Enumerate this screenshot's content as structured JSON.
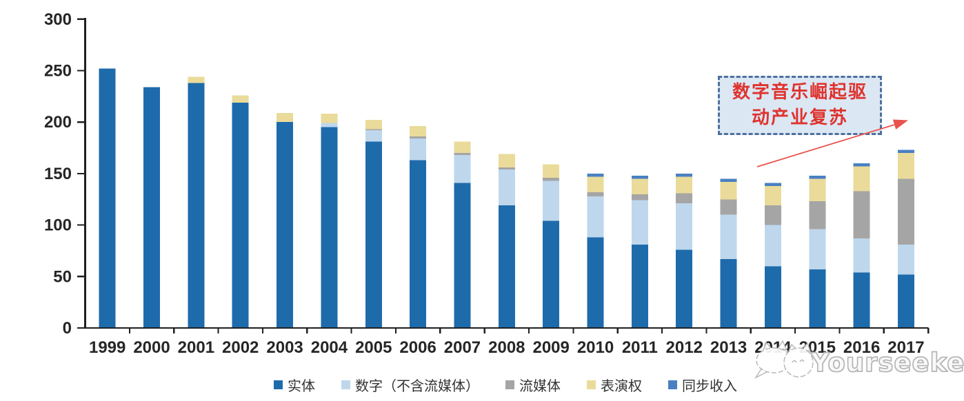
{
  "chart_data": {
    "type": "bar",
    "stacked": true,
    "title": "",
    "xlabel": "",
    "ylabel": "",
    "ylim": [
      0,
      300
    ],
    "yticks": [
      0,
      50,
      100,
      150,
      200,
      250,
      300
    ],
    "grid": false,
    "legend_position": "bottom",
    "categories": [
      "1999",
      "2000",
      "2001",
      "2002",
      "2003",
      "2004",
      "2005",
      "2006",
      "2007",
      "2008",
      "2009",
      "2010",
      "2011",
      "2012",
      "2013",
      "2014",
      "2015",
      "2016",
      "2017"
    ],
    "series": [
      {
        "name": "实体",
        "color": "#1e6bac",
        "values": [
          252,
          234,
          238,
          219,
          200,
          195,
          181,
          163,
          141,
          119,
          104,
          88,
          81,
          76,
          67,
          60,
          57,
          54,
          52
        ]
      },
      {
        "name": "数字（不含流媒体）",
        "color": "#bed7ec",
        "values": [
          0,
          0,
          0,
          0,
          0,
          4,
          11,
          21,
          27,
          35,
          39,
          40,
          43,
          45,
          43,
          40,
          39,
          33,
          29
        ]
      },
      {
        "name": "流媒体",
        "color": "#a5a5a5",
        "values": [
          0,
          0,
          0,
          0,
          0,
          0,
          1,
          2,
          2,
          2,
          3,
          4,
          6,
          10,
          15,
          19,
          27,
          46,
          64
        ]
      },
      {
        "name": "表演权",
        "color": "#eadb9a",
        "values": [
          0,
          0,
          6,
          7,
          9,
          9,
          9,
          10,
          11,
          13,
          13,
          15,
          15,
          16,
          17,
          19,
          22,
          24,
          25
        ]
      },
      {
        "name": "同步收入",
        "color": "#4a80c2",
        "values": [
          0,
          0,
          0,
          0,
          0,
          0,
          0,
          0,
          0,
          0,
          0,
          3,
          3,
          3,
          3,
          3,
          3,
          3,
          3
        ]
      }
    ],
    "axis_color": "#1f1f1f",
    "tick_label_color": "#262626"
  },
  "annotation": {
    "line1": "数字音乐崛起驱",
    "line2": "动产业复苏",
    "text_color": "#df332d",
    "border_color": "#4c6f9f",
    "fill_color": "#dce7f4",
    "arrow_color": "#e8524c"
  },
  "watermark": {
    "brand": "Yourseeker",
    "color": "#b5b5b5"
  }
}
